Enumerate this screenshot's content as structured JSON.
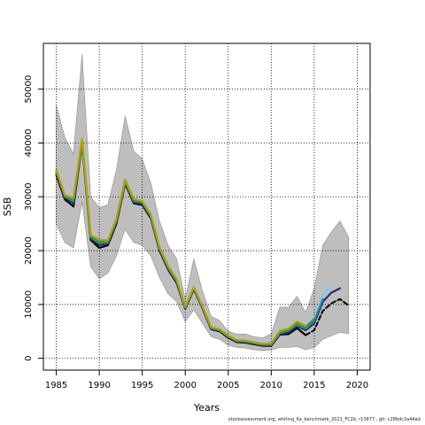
{
  "footnote": "stockassessment.org, whiting_6a_benchmark_2021_FC2b, r13877 , git: c28bdc2a44ad",
  "chart_data": {
    "type": "line",
    "title": "",
    "xlabel": "Years",
    "ylabel": "SSB",
    "xlim": [
      1983.5,
      2021.5
    ],
    "ylim": [
      -2200,
      58500
    ],
    "x_ticks": [
      1985,
      1990,
      1995,
      2000,
      2005,
      2010,
      2015,
      2020
    ],
    "y_ticks": [
      0,
      10000,
      20000,
      30000,
      40000,
      50000
    ],
    "grid": true,
    "grid_style": "dotted",
    "legend": "none",
    "colors": {
      "band": "#bebebe",
      "band_edge": "#8c8c8c",
      "main": "#000000",
      "green": "#1f9e3a",
      "olive": "#b5a000",
      "teal": "#2a8f9c",
      "navy": "#2b2a6e",
      "skyblue": "#6fd0ee"
    },
    "confidence_band": {
      "x": [
        1985,
        1986,
        1987,
        1988,
        1989,
        1990,
        1991,
        1992,
        1993,
        1994,
        1995,
        1996,
        1997,
        1998,
        1999,
        2000,
        2001,
        2002,
        2003,
        2004,
        2005,
        2006,
        2007,
        2008,
        2009,
        2010,
        2011,
        2012,
        2013,
        2014,
        2015,
        2016,
        2017,
        2018,
        2019
      ],
      "upper": [
        47000,
        41000,
        38000,
        56500,
        30000,
        28000,
        28500,
        35000,
        45000,
        38500,
        37000,
        32500,
        25500,
        21000,
        18500,
        11000,
        18500,
        12500,
        7800,
        7000,
        5000,
        4500,
        4500,
        4000,
        3800,
        4500,
        9500,
        9500,
        11500,
        8500,
        13000,
        21000,
        23500,
        25500,
        22500
      ],
      "lower": [
        25000,
        21500,
        20500,
        29000,
        17000,
        14800,
        15800,
        19000,
        24000,
        21500,
        21000,
        19000,
        15000,
        12000,
        10500,
        6800,
        9000,
        6500,
        4000,
        3500,
        2400,
        2000,
        1900,
        1600,
        1400,
        1500,
        2000,
        2000,
        2200,
        1600,
        2000,
        3500,
        4200,
        4800,
        4600
      ]
    },
    "series": [
      {
        "color": "#000000",
        "style": "solid",
        "x": [
          1985,
          1986,
          1987,
          1988,
          1989,
          1990,
          1991,
          1992,
          1993,
          1994,
          1995,
          1996,
          1997,
          1998,
          1999,
          2000,
          2001,
          2002,
          2003,
          2004,
          2005,
          2006,
          2007,
          2008,
          2009,
          2010,
          2011,
          2012,
          2013,
          2014
        ],
        "values": [
          34000,
          29500,
          28200,
          40000,
          22000,
          20500,
          21000,
          25000,
          32500,
          28800,
          28500,
          26000,
          20000,
          16500,
          14000,
          9200,
          12800,
          9300,
          5400,
          5000,
          3800,
          3000,
          2900,
          2600,
          2300,
          2300,
          4400,
          4500,
          5600,
          4300
        ]
      },
      {
        "color": "#000000",
        "style": "dashed",
        "x": [
          2014,
          2015,
          2016,
          2017,
          2018,
          2019
        ],
        "values": [
          4300,
          5200,
          8800,
          10200,
          11000,
          9800
        ]
      },
      {
        "color": "#2b2a6e",
        "style": "solid",
        "x": [
          1985,
          1986,
          1987,
          1988,
          1989,
          1990,
          1991,
          1992,
          1993,
          1994,
          1995,
          1996,
          1997,
          1998,
          1999,
          2000,
          2001,
          2002,
          2003,
          2004,
          2005,
          2006,
          2007,
          2008,
          2009,
          2010,
          2011,
          2012,
          2013,
          2014,
          2015,
          2016,
          2017,
          2018
        ],
        "values": [
          34400,
          29800,
          28800,
          40200,
          22300,
          21000,
          21300,
          25300,
          32700,
          29000,
          28700,
          26200,
          20200,
          16700,
          14200,
          9300,
          12900,
          9400,
          5500,
          5100,
          3900,
          3100,
          3000,
          2700,
          2400,
          2400,
          4500,
          4800,
          6000,
          5200,
          6500,
          10500,
          12200,
          13000
        ]
      },
      {
        "color": "#6fd0ee",
        "style": "solid",
        "x": [
          2013,
          2014,
          2015,
          2016,
          2017
        ],
        "values": [
          6200,
          5700,
          7200,
          11800,
          13600
        ]
      },
      {
        "color": "#2a8f9c",
        "style": "solid",
        "x": [
          1985,
          1986,
          1987,
          1988,
          1989,
          1990,
          1991,
          1992,
          1993,
          1994,
          1995,
          1996,
          1997,
          1998,
          1999,
          2000,
          2001,
          2002,
          2003,
          2004,
          2005,
          2006,
          2007,
          2008,
          2009,
          2010,
          2011,
          2012,
          2013,
          2014,
          2015,
          2016
        ],
        "values": [
          34600,
          30000,
          29200,
          40300,
          22500,
          21400,
          21500,
          25500,
          32800,
          29200,
          28900,
          26300,
          20300,
          16800,
          14300,
          9400,
          13000,
          9500,
          5600,
          5200,
          4000,
          3200,
          3100,
          2800,
          2500,
          2500,
          4700,
          5100,
          6300,
          5500,
          7000,
          11000
        ]
      },
      {
        "color": "#1f9e3a",
        "style": "solid",
        "x": [
          1985,
          1986,
          1987,
          1988,
          1989,
          1990,
          1991,
          1992,
          1993,
          1994,
          1995,
          1996,
          1997,
          1998,
          1999,
          2000,
          2001,
          2002,
          2003,
          2004,
          2005,
          2006,
          2007,
          2008,
          2009,
          2010,
          2011,
          2012,
          2013,
          2014,
          2015
        ],
        "values": [
          34800,
          30100,
          29500,
          40500,
          22700,
          21700,
          21700,
          25700,
          33000,
          29400,
          29000,
          26500,
          20500,
          17000,
          14500,
          9500,
          13100,
          9600,
          5700,
          5300,
          4100,
          3300,
          3200,
          2900,
          2600,
          2700,
          4900,
          5300,
          6500,
          5800,
          7300
        ]
      },
      {
        "color": "#b5a000",
        "style": "solid",
        "x": [
          1985,
          1986,
          1987,
          1988,
          1989,
          1990,
          1991,
          1992,
          1993,
          1994,
          1995,
          1996,
          1997,
          1998,
          1999,
          2000,
          2001,
          2002,
          2003,
          2004,
          2005,
          2006,
          2007,
          2008,
          2009,
          2010,
          2011,
          2012,
          2013,
          2014
        ],
        "values": [
          35000,
          30300,
          29800,
          40700,
          22900,
          22000,
          21900,
          25900,
          33200,
          29600,
          29200,
          26700,
          20700,
          17200,
          14700,
          9600,
          13200,
          9700,
          5800,
          5400,
          4200,
          3400,
          3300,
          3000,
          2700,
          2800,
          5100,
          5500,
          6800,
          6000
        ]
      }
    ]
  }
}
